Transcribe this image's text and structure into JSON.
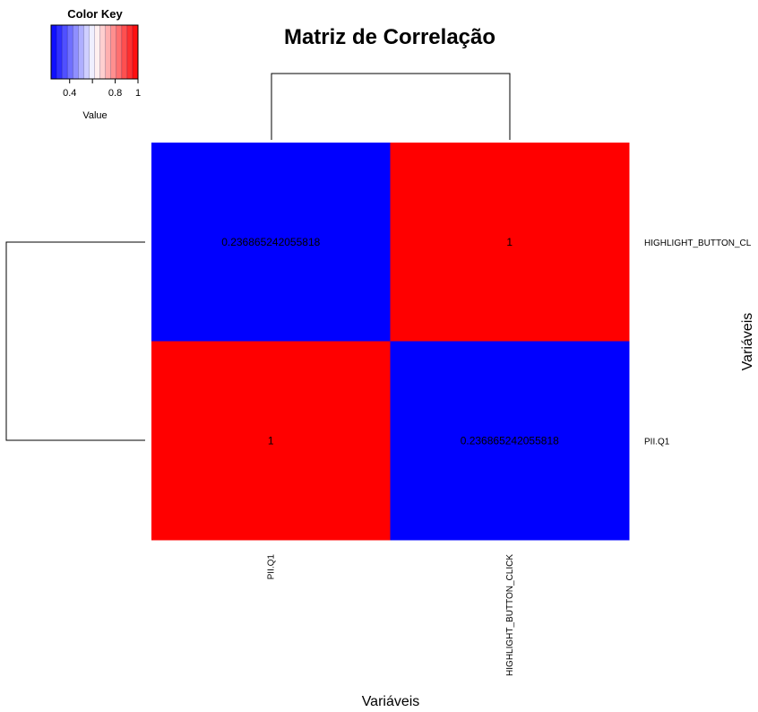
{
  "chart_data": {
    "type": "heatmap",
    "title": "Matriz de Correlação",
    "xlabel": "Variáveis",
    "ylabel": "Variáveis",
    "columns": [
      "PII.Q1",
      "HIGHLIGHT_BUTTON_CLICK"
    ],
    "rows": [
      "HIGHLIGHT_BUTTON_CL",
      "PII.Q1"
    ],
    "cells": [
      [
        "0.236865242055818",
        "1"
      ],
      [
        "1",
        "0.236865242055818"
      ]
    ],
    "values": [
      [
        0.236865242055818,
        1
      ],
      [
        1,
        0.236865242055818
      ]
    ],
    "colors": {
      "low": "#0000ff",
      "mid": "#ffffff",
      "high": "#ff0000"
    },
    "dendrogram": {
      "rows": true,
      "columns": true
    },
    "color_key": {
      "title": "Color Key",
      "xlabel": "Value",
      "ticks": [
        "0.4",
        "0.8",
        "1"
      ],
      "tick_values": [
        0.4,
        0.8,
        1
      ],
      "range": [
        0.236865242055818,
        1
      ],
      "bands": 16
    }
  }
}
